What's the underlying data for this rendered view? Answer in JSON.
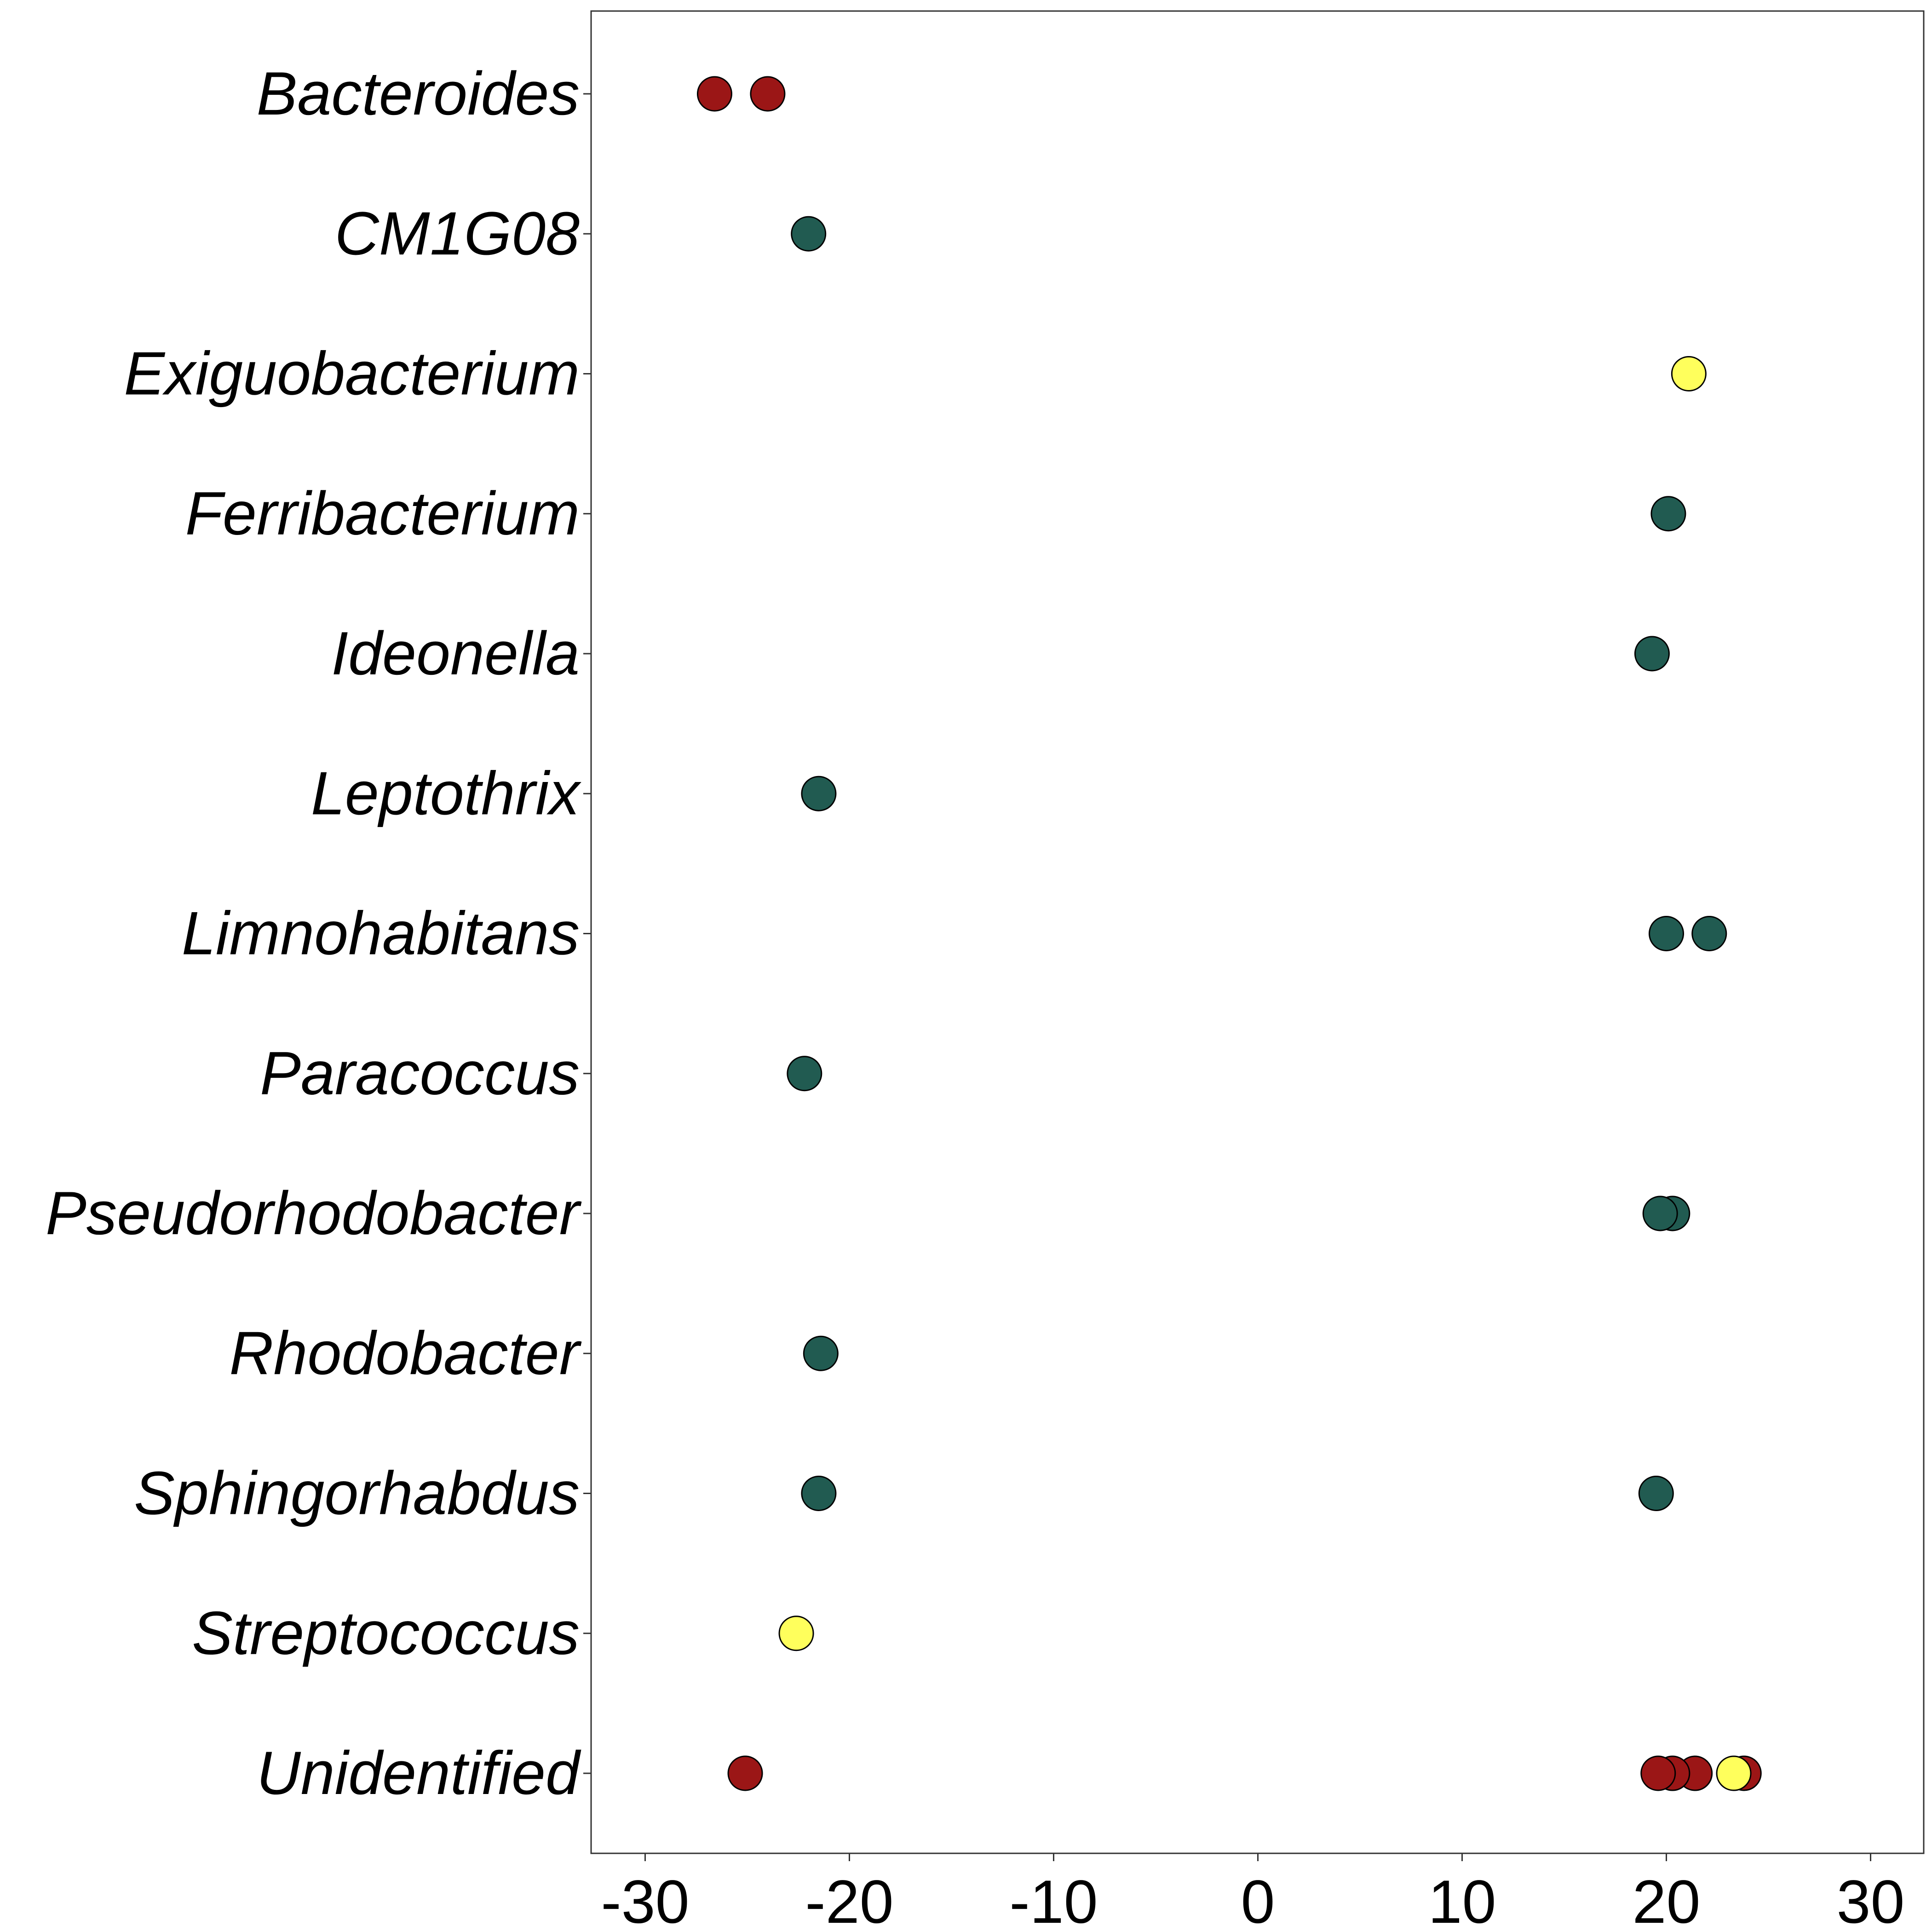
{
  "chart_data": {
    "type": "scatter",
    "categories": [
      "Bacteroides",
      "CM1G08",
      "Exiguobacterium",
      "Ferribacterium",
      "Ideonella",
      "Leptothrix",
      "Limnohabitans",
      "Paracoccus",
      "Pseudorhodobacter",
      "Rhodobacter",
      "Sphingorhabdus",
      "Streptococcus",
      "Unidentified"
    ],
    "xlim": [
      -33,
      33
    ],
    "x_ticks": [
      "-30",
      "-20",
      "-10",
      "0",
      "10",
      "20",
      "30"
    ],
    "x_tick_values": [
      -30,
      -20,
      -10,
      0,
      10,
      20,
      30
    ],
    "grid": false,
    "colors": {
      "red": "#9b1616",
      "green": "#215b51",
      "yellow": "#ffff5c",
      "outline": "#000000"
    },
    "points": [
      {
        "category": "Bacteroides",
        "x": -26.6,
        "color": "red"
      },
      {
        "category": "Bacteroides",
        "x": -24.0,
        "color": "red"
      },
      {
        "category": "CM1G08",
        "x": -22.0,
        "color": "green"
      },
      {
        "category": "Exiguobacterium",
        "x": 21.1,
        "color": "yellow"
      },
      {
        "category": "Ferribacterium",
        "x": 20.1,
        "color": "green"
      },
      {
        "category": "Ideonella",
        "x": 19.3,
        "color": "green"
      },
      {
        "category": "Leptothrix",
        "x": -21.5,
        "color": "green"
      },
      {
        "category": "Limnohabitans",
        "x": 20.0,
        "color": "green"
      },
      {
        "category": "Limnohabitans",
        "x": 22.1,
        "color": "green"
      },
      {
        "category": "Paracoccus",
        "x": -22.2,
        "color": "green"
      },
      {
        "category": "Pseudorhodobacter",
        "x": 20.3,
        "color": "green"
      },
      {
        "category": "Pseudorhodobacter",
        "x": 19.7,
        "color": "green"
      },
      {
        "category": "Rhodobacter",
        "x": -21.4,
        "color": "green"
      },
      {
        "category": "Sphingorhabdus",
        "x": -21.5,
        "color": "green"
      },
      {
        "category": "Sphingorhabdus",
        "x": 19.5,
        "color": "green"
      },
      {
        "category": "Streptococcus",
        "x": -22.6,
        "color": "yellow"
      },
      {
        "category": "Unidentified",
        "x": -25.1,
        "color": "red"
      },
      {
        "category": "Unidentified",
        "x": 21.4,
        "color": "red"
      },
      {
        "category": "Unidentified",
        "x": 20.3,
        "color": "red"
      },
      {
        "category": "Unidentified",
        "x": 19.6,
        "color": "red"
      },
      {
        "category": "Unidentified",
        "x": 23.8,
        "color": "red"
      },
      {
        "category": "Unidentified",
        "x": 23.3,
        "color": "yellow"
      }
    ]
  }
}
